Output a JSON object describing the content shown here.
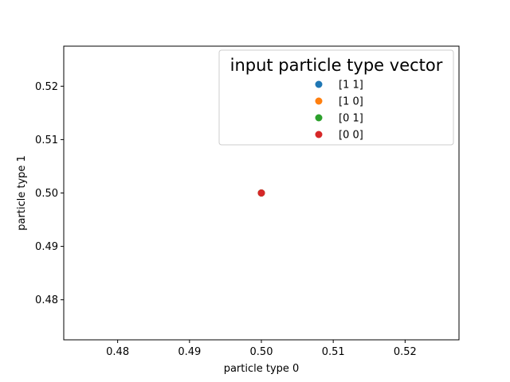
{
  "chart_data": {
    "type": "scatter",
    "title": "",
    "xlabel": "particle type 0",
    "ylabel": "particle type 1",
    "xlim": [
      0.4725,
      0.5275
    ],
    "ylim": [
      0.4725,
      0.5275
    ],
    "xticks": [
      {
        "value": 0.48,
        "label": "0.48"
      },
      {
        "value": 0.49,
        "label": "0.49"
      },
      {
        "value": 0.5,
        "label": "0.50"
      },
      {
        "value": 0.51,
        "label": "0.51"
      },
      {
        "value": 0.52,
        "label": "0.52"
      }
    ],
    "yticks": [
      {
        "value": 0.48,
        "label": "0.48"
      },
      {
        "value": 0.49,
        "label": "0.49"
      },
      {
        "value": 0.5,
        "label": "0.50"
      },
      {
        "value": 0.51,
        "label": "0.51"
      },
      {
        "value": 0.52,
        "label": "0.52"
      }
    ],
    "grid": false,
    "legend": {
      "title": "input particle type vector",
      "placement": "upper right"
    },
    "series": [
      {
        "name": "[1 1]",
        "color": "#1f77b4",
        "points": [
          {
            "x": 0.5,
            "y": 0.5
          }
        ]
      },
      {
        "name": "[1 0]",
        "color": "#ff7f0e",
        "points": [
          {
            "x": 0.5,
            "y": 0.5
          }
        ]
      },
      {
        "name": "[0 1]",
        "color": "#2ca02c",
        "points": [
          {
            "x": 0.5,
            "y": 0.5
          }
        ]
      },
      {
        "name": "[0 0]",
        "color": "#d62728",
        "points": [
          {
            "x": 0.5,
            "y": 0.5
          }
        ]
      }
    ]
  }
}
